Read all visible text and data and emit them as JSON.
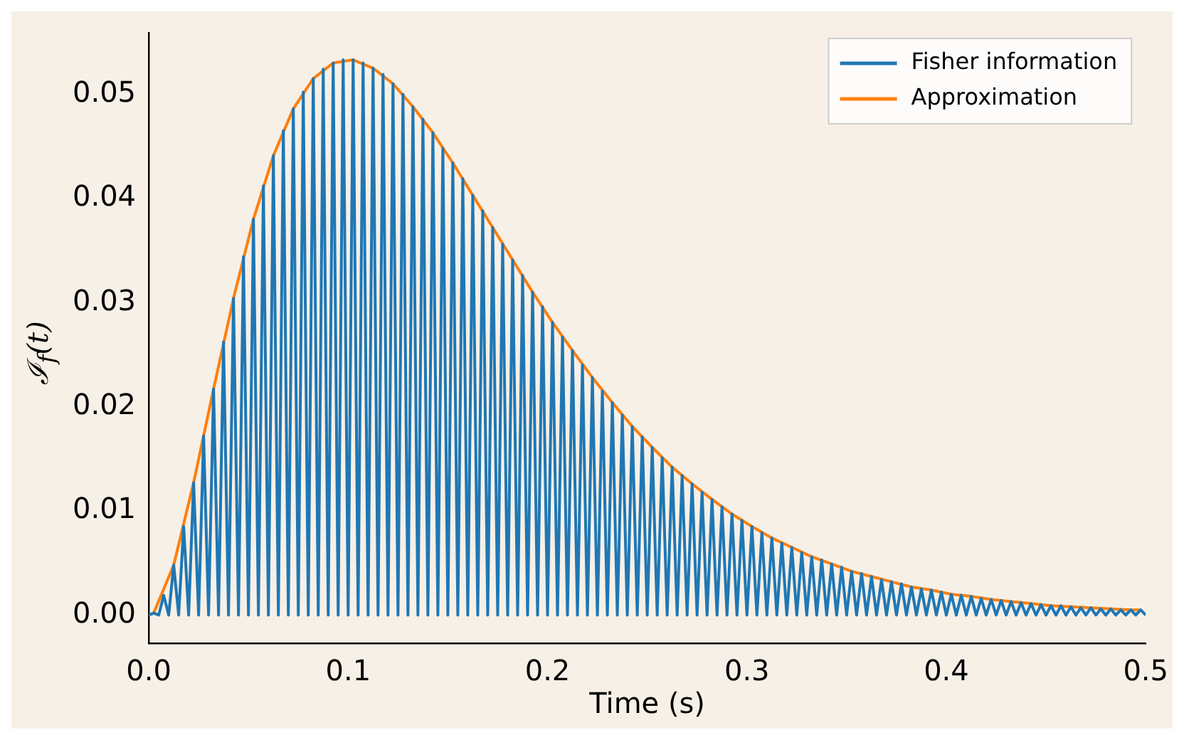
{
  "chart_data": {
    "type": "line",
    "xlabel": "Time (s)",
    "ylabel": "ℐ$_{f}$(t)",
    "xlim": [
      0,
      0.5
    ],
    "xticks": [
      {
        "value": 0,
        "label": "0.0"
      },
      0.1,
      0.2,
      0.3,
      0.4,
      0.5
    ],
    "ylim": [
      -0.0027,
      0.0559
    ],
    "yticks": [
      {
        "value": 0,
        "label": "0.00"
      },
      {
        "value": 0.01,
        "label": "0.01"
      },
      {
        "value": 0.02,
        "label": "0.02"
      },
      {
        "value": 0.03,
        "label": "0.03"
      },
      {
        "value": 0.04,
        "label": "0.04"
      },
      {
        "value": 0.05,
        "label": "0.05"
      }
    ],
    "grid": false,
    "legend": "top right",
    "marker": "none",
    "line_style": "solid",
    "series": [
      {
        "name": "Fisher information",
        "color": "#1f77b4",
        "x": [
          0,
          0.0025,
          0.005,
          0.0075,
          0.01,
          0.0125,
          0.015,
          0.0175,
          0.02,
          0.0225,
          0.025,
          0.0275,
          0.03,
          0.0325,
          0.035,
          0.0375,
          0.04,
          0.0425,
          0.045,
          0.0475,
          0.05,
          0.0525,
          0.055,
          0.0575,
          0.06,
          0.0625,
          0.065,
          0.0675,
          0.07,
          0.0725,
          0.075,
          0.0775,
          0.08,
          0.0825,
          0.085,
          0.0875,
          0.09,
          0.0925,
          0.095,
          0.0975,
          0.1,
          0.1025,
          0.105,
          0.1075,
          0.11,
          0.1125,
          0.115,
          0.1175,
          0.12,
          0.1225,
          0.125,
          0.1275,
          0.13,
          0.1325,
          0.135,
          0.1375,
          0.14,
          0.1425,
          0.145,
          0.1475,
          0.15,
          0.1525,
          0.155,
          0.1575,
          0.16,
          0.1625,
          0.165,
          0.1675,
          0.17,
          0.1725,
          0.175,
          0.1775,
          0.18,
          0.1825,
          0.185,
          0.1875,
          0.19,
          0.1925,
          0.195,
          0.1975,
          0.2,
          0.2025,
          0.205,
          0.2075,
          0.21,
          0.2125,
          0.215,
          0.2175,
          0.22,
          0.2225,
          0.225,
          0.2275,
          0.23,
          0.2325,
          0.235,
          0.2375,
          0.24,
          0.2425,
          0.245,
          0.2475,
          0.25,
          0.2525,
          0.255,
          0.2575,
          0.26,
          0.2625,
          0.265,
          0.2675,
          0.27,
          0.2725,
          0.275,
          0.2775,
          0.28,
          0.2825,
          0.285,
          0.2875,
          0.29,
          0.2925,
          0.295,
          0.2975,
          0.3,
          0.3025,
          0.305,
          0.3075,
          0.31,
          0.3125,
          0.315,
          0.3175,
          0.32,
          0.3225,
          0.325,
          0.3275,
          0.33,
          0.3325,
          0.335,
          0.3375,
          0.34,
          0.3425,
          0.345,
          0.3475,
          0.35,
          0.3525,
          0.355,
          0.3575,
          0.36,
          0.3625,
          0.365,
          0.3675,
          0.37,
          0.3725,
          0.375,
          0.3775,
          0.38,
          0.3825,
          0.385,
          0.3875,
          0.39,
          0.3925,
          0.395,
          0.3975,
          0.4,
          0.4025,
          0.405,
          0.4075,
          0.41,
          0.4125,
          0.415,
          0.4175,
          0.42,
          0.4225,
          0.425,
          0.4275,
          0.43,
          0.4325,
          0.435,
          0.4375,
          0.44,
          0.4425,
          0.445,
          0.4475,
          0.45,
          0.4525,
          0.455,
          0.4575,
          0.46,
          0.4625,
          0.465,
          0.4675,
          0.47,
          0.4725,
          0.475,
          0.4775,
          0.48,
          0.4825,
          0.485,
          0.4875,
          0.49,
          0.4925,
          0.495,
          0.4975,
          0.5
        ],
        "values": [
          0,
          0.0002,
          0,
          0.0019,
          0,
          0.0048,
          0,
          0.0085,
          0,
          0.0127,
          0,
          0.0172,
          0,
          0.0217,
          0,
          0.0262,
          0,
          0.0304,
          0,
          0.0344,
          0,
          0.038,
          0,
          0.0412,
          0,
          0.0441,
          0,
          0.0465,
          0,
          0.0486,
          0,
          0.0502,
          0,
          0.0515,
          0,
          0.0524,
          0,
          0.053,
          0,
          0.0533,
          0,
          0.0533,
          0,
          0.053,
          0,
          0.0525,
          0,
          0.0519,
          0,
          0.051,
          0,
          0.05,
          0,
          0.0488,
          0,
          0.0476,
          0,
          0.0463,
          0,
          0.0448,
          0,
          0.0434,
          0,
          0.0419,
          0,
          0.0403,
          0,
          0.0388,
          0,
          0.0372,
          0,
          0.0356,
          0,
          0.0341,
          0,
          0.0326,
          0,
          0.031,
          0,
          0.0296,
          0,
          0.0281,
          0,
          0.0267,
          0,
          0.0254,
          0,
          0.024,
          0,
          0.0228,
          0,
          0.0215,
          0,
          0.0204,
          0,
          0.0192,
          0,
          0.0181,
          0,
          0.0171,
          0,
          0.0161,
          0,
          0.0151,
          0,
          0.0142,
          0,
          0.0134,
          0,
          0.0126,
          0,
          0.0118,
          0,
          0.0111,
          0,
          0.0104,
          0,
          0.0097,
          0,
          0.0091,
          0,
          0.0085,
          0,
          0.0079,
          0,
          0.0074,
          0,
          0.0069,
          0,
          0.0065,
          0,
          0.006,
          0,
          0.0056,
          0,
          0.0053,
          0,
          0.0049,
          0,
          0.0046,
          0,
          0.0042,
          0,
          0.004,
          0,
          0.0037,
          0,
          0.0034,
          0,
          0.0032,
          0,
          0.003,
          0,
          0.0027,
          0,
          0.0025,
          0,
          0.0024,
          0,
          0.0022,
          0,
          0.002,
          0,
          0.0019,
          0,
          0.0018,
          0,
          0.0016,
          0,
          0.0015,
          0,
          0.0014,
          0,
          0.0013,
          0,
          0.0012,
          0,
          0.0011,
          0,
          0.001,
          0,
          0.0009,
          0,
          0.0009,
          0,
          0.0008,
          0,
          0.0007,
          0,
          0.0007,
          0,
          0.0006,
          0,
          0.0006,
          0,
          0.0005,
          0,
          0.0005,
          0,
          0.0005,
          0
        ]
      },
      {
        "name": "Approximation",
        "color": "#ff7f0e",
        "x": [
          0,
          0.0025,
          0.0125,
          0.0225,
          0.0325,
          0.0425,
          0.0525,
          0.0625,
          0.0725,
          0.0825,
          0.0925,
          0.1025,
          0.1125,
          0.1225,
          0.1325,
          0.1425,
          0.1525,
          0.1625,
          0.1725,
          0.1825,
          0.1925,
          0.2025,
          0.2125,
          0.2225,
          0.2325,
          0.2425,
          0.2525,
          0.2625,
          0.2725,
          0.2825,
          0.2925,
          0.3025,
          0.3125,
          0.3225,
          0.3325,
          0.3425,
          0.3525,
          0.3625,
          0.3725,
          0.3825,
          0.3925,
          0.4025,
          0.4125,
          0.4225,
          0.4325,
          0.4425,
          0.4525,
          0.4625,
          0.4725,
          0.4825,
          0.4925,
          0.4975
        ],
        "values": [
          0,
          0.0002,
          0.0048,
          0.0127,
          0.0217,
          0.0304,
          0.038,
          0.0441,
          0.0486,
          0.0515,
          0.053,
          0.0533,
          0.0525,
          0.051,
          0.0488,
          0.0463,
          0.0434,
          0.0403,
          0.0372,
          0.0341,
          0.031,
          0.0281,
          0.0254,
          0.0228,
          0.0204,
          0.0181,
          0.0161,
          0.0142,
          0.0126,
          0.0111,
          0.0097,
          0.0085,
          0.0074,
          0.0065,
          0.0056,
          0.0049,
          0.0042,
          0.0037,
          0.0032,
          0.0027,
          0.0024,
          0.002,
          0.0018,
          0.0015,
          0.0013,
          0.0011,
          0.0009,
          0.0008,
          0.0007,
          0.0006,
          0.0005,
          0.0005
        ]
      }
    ]
  }
}
